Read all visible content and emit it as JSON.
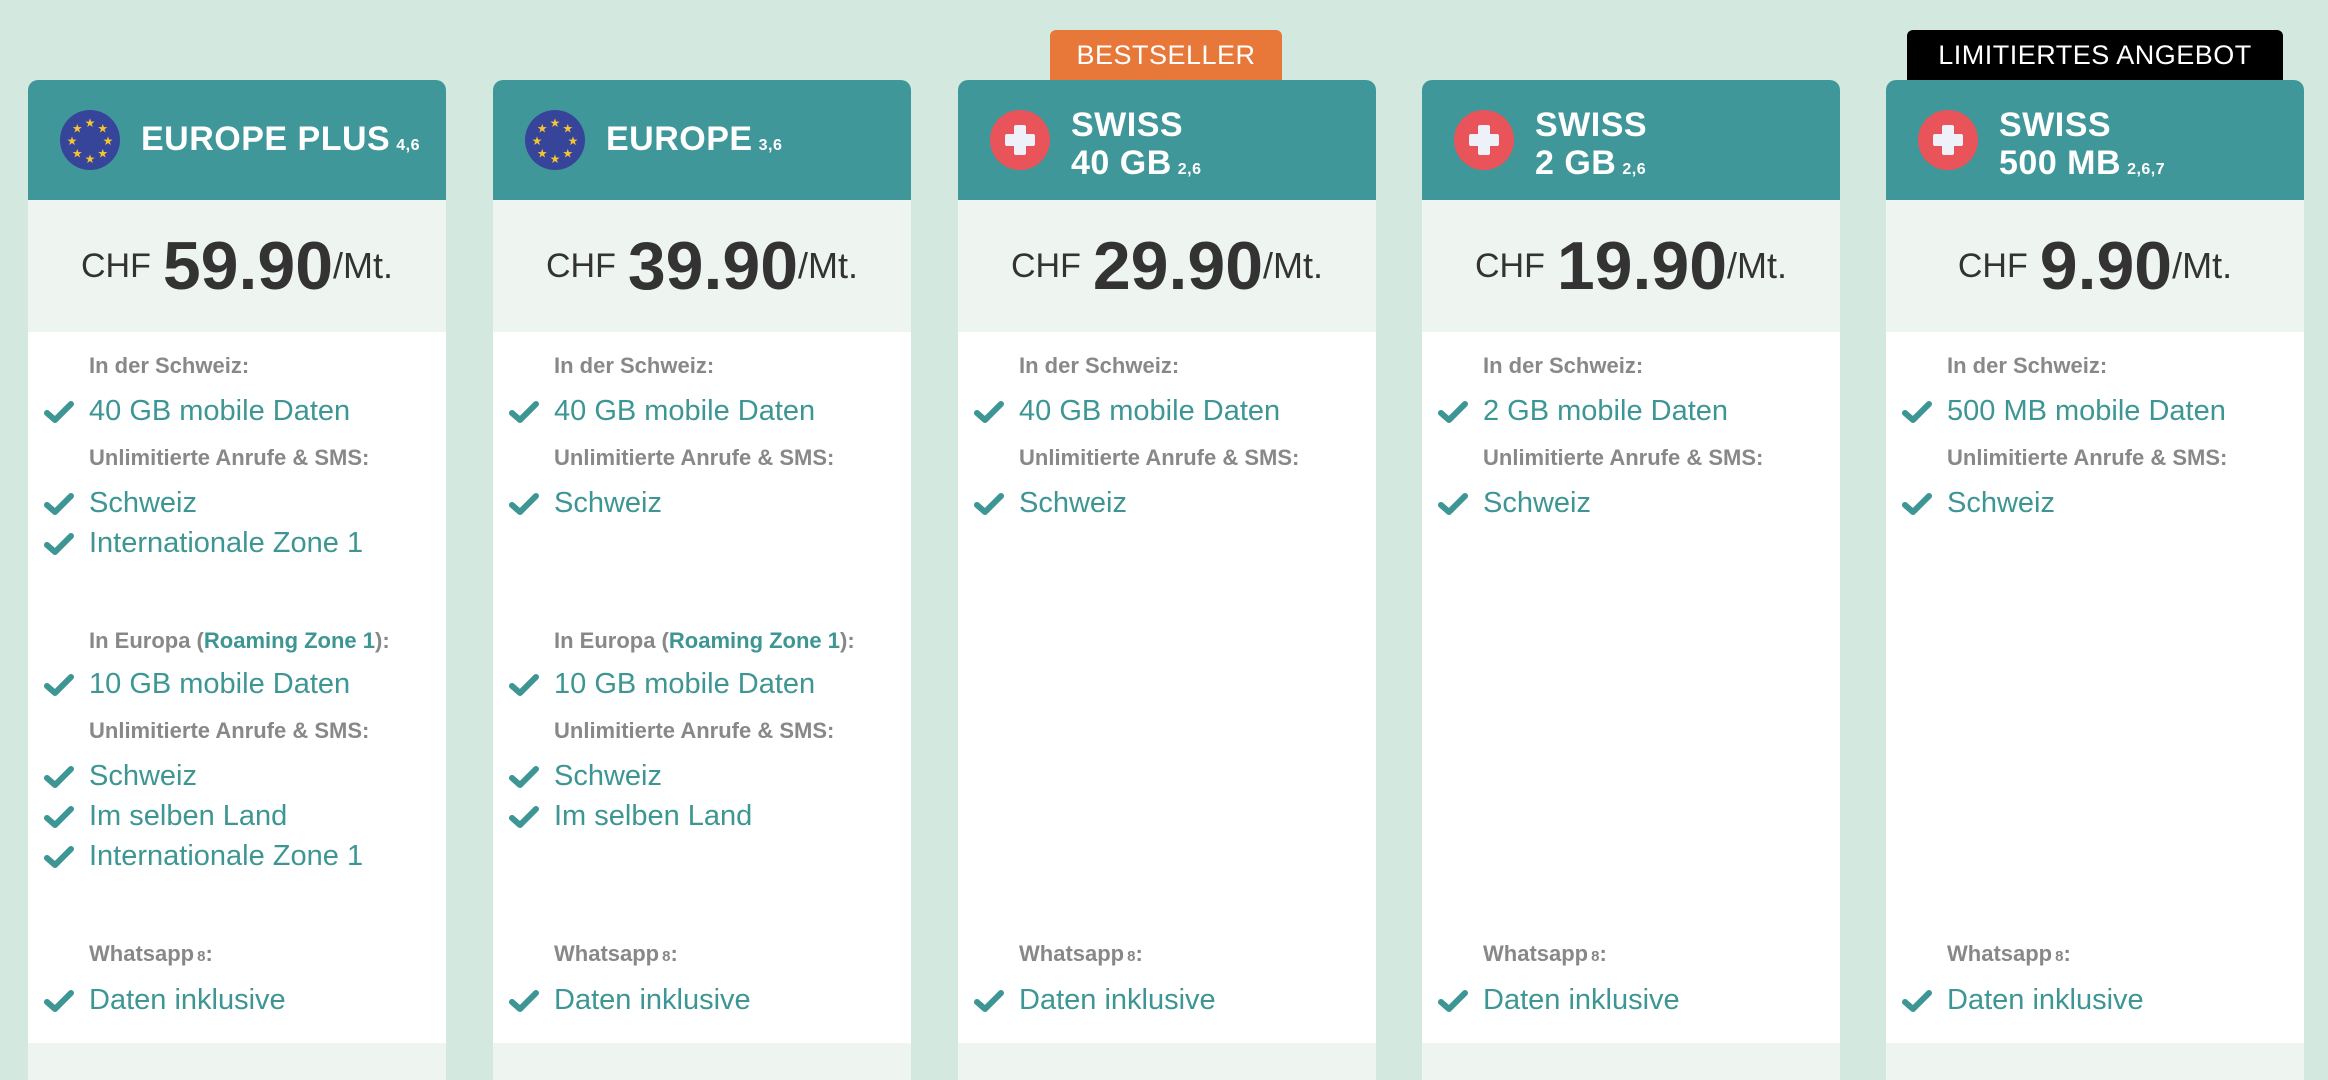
{
  "colors": {
    "background": "#d3e9df",
    "header": "#40979a",
    "accent": "#3d9693",
    "bestseller": "#e8773a",
    "limited": "#000000"
  },
  "badges": [
    {
      "card": 2,
      "label": "BESTSELLER",
      "color": "#e8773a"
    },
    {
      "card": 4,
      "label": "LIMITIERTES ANGEBOT",
      "color": "#000000"
    }
  ],
  "common": {
    "swiss_label": "In der Schweiz:",
    "calls_label": "Unlimitierte Anrufe & SMS:",
    "europe_prefix": "In Europa (",
    "europe_link": "Roaming Zone 1",
    "europe_suffix": "):",
    "whatsapp_label": "Whatsapp",
    "whatsapp_note": "8",
    "whatsapp_colon": ":",
    "currency": "CHF",
    "per": "/Mt."
  },
  "plans": [
    {
      "flag": "eu-flag-icon",
      "title1": "EUROPE PLUS",
      "title2": "",
      "notes": "4,6",
      "price": "59.90",
      "swiss_data": "40 GB mobile Daten",
      "swiss_calls": [
        "Schweiz",
        "Internationale Zone 1"
      ],
      "europe": {
        "data": "10 GB mobile Daten",
        "calls": [
          "Schweiz",
          "Im selben Land",
          "Internationale Zone 1"
        ]
      },
      "whatsapp": "Daten inklusive"
    },
    {
      "flag": "eu-flag-icon",
      "title1": "EUROPE",
      "title2": "",
      "notes": "3,6",
      "price": "39.90",
      "swiss_data": "40 GB mobile Daten",
      "swiss_calls": [
        "Schweiz"
      ],
      "europe": {
        "data": "10 GB mobile Daten",
        "calls": [
          "Schweiz",
          "Im selben Land"
        ]
      },
      "whatsapp": "Daten inklusive"
    },
    {
      "flag": "swiss-flag-icon",
      "title1": "SWISS",
      "title2": "40 GB",
      "notes": "2,6",
      "price": "29.90",
      "swiss_data": "40 GB mobile Daten",
      "swiss_calls": [
        "Schweiz"
      ],
      "europe": null,
      "whatsapp": "Daten inklusive"
    },
    {
      "flag": "swiss-flag-icon",
      "title1": "SWISS",
      "title2": "2 GB",
      "notes": "2,6",
      "price": "19.90",
      "swiss_data": "2 GB mobile Daten",
      "swiss_calls": [
        "Schweiz"
      ],
      "europe": null,
      "whatsapp": "Daten inklusive"
    },
    {
      "flag": "swiss-flag-icon",
      "title1": "SWISS",
      "title2": "500 MB",
      "notes": "2,6,7",
      "price": "9.90",
      "swiss_data": "500 MB mobile Daten",
      "swiss_calls": [
        "Schweiz"
      ],
      "europe": null,
      "whatsapp": "Daten inklusive"
    }
  ]
}
